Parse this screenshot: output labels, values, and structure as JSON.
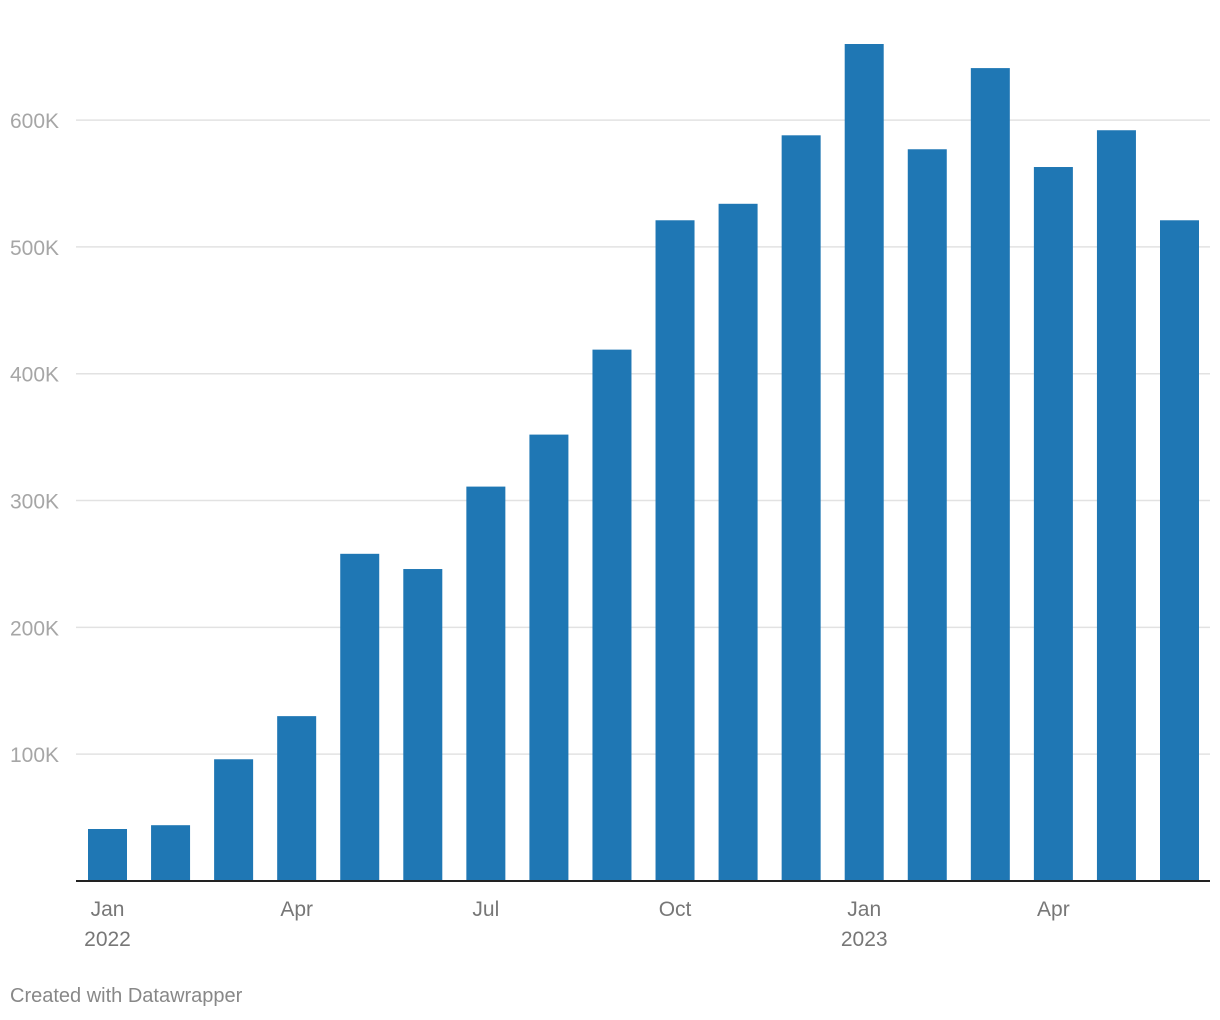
{
  "chart_data": {
    "type": "bar",
    "title": "",
    "xlabel": "",
    "ylabel": "",
    "categories": [
      "Jan 2022",
      "Feb 2022",
      "Mar 2022",
      "Apr 2022",
      "May 2022",
      "Jun 2022",
      "Jul 2022",
      "Aug 2022",
      "Sep 2022",
      "Oct 2022",
      "Nov 2022",
      "Dec 2022",
      "Jan 2023",
      "Feb 2023",
      "Mar 2023",
      "Apr 2023",
      "May 2023",
      "Jun 2023"
    ],
    "values": [
      41000,
      44000,
      96000,
      130000,
      258000,
      246000,
      311000,
      352000,
      419000,
      521000,
      534000,
      588000,
      660000,
      577000,
      641000,
      563000,
      592000,
      521000
    ],
    "ylim": [
      0,
      660000
    ],
    "y_ticks": [
      {
        "value": 100000,
        "label": "100K"
      },
      {
        "value": 200000,
        "label": "200K"
      },
      {
        "value": 300000,
        "label": "300K"
      },
      {
        "value": 400000,
        "label": "400K"
      },
      {
        "value": 500000,
        "label": "500K"
      },
      {
        "value": 600000,
        "label": "600K"
      }
    ],
    "x_ticks": [
      {
        "index": 0,
        "label": "Jan",
        "sublabel": "2022"
      },
      {
        "index": 3,
        "label": "Apr",
        "sublabel": ""
      },
      {
        "index": 6,
        "label": "Jul",
        "sublabel": ""
      },
      {
        "index": 9,
        "label": "Oct",
        "sublabel": ""
      },
      {
        "index": 12,
        "label": "Jan",
        "sublabel": "2023"
      },
      {
        "index": 15,
        "label": "Apr",
        "sublabel": ""
      }
    ],
    "grid": true,
    "bar_color": "#1f77b4"
  },
  "footer": {
    "credit": "Created with Datawrapper"
  }
}
